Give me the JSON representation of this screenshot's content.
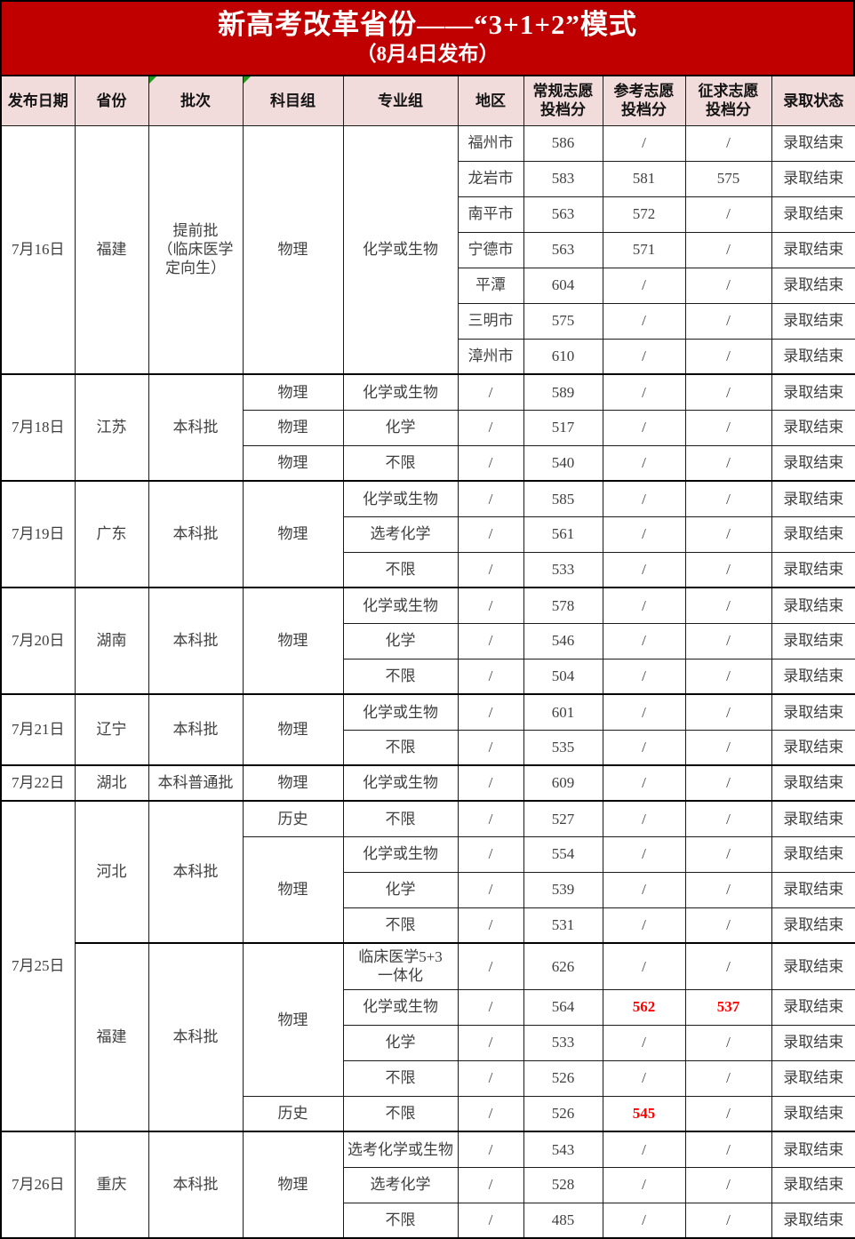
{
  "banner": {
    "title": "新高考改革省份——“3+1+2”模式",
    "subtitle": "（8月4日发布）"
  },
  "colors": {
    "banner_red": "#c00000",
    "header_pink": "#f2dcdb",
    "border_black": "#000000",
    "data_text": "#3f3f3f",
    "highlight_red": "#ff0000",
    "flag_green": "#1f9a1f"
  },
  "table": {
    "columns": [
      {
        "key": "date",
        "label": "发布日期"
      },
      {
        "key": "province",
        "label": "省份"
      },
      {
        "key": "batch",
        "label": "批次"
      },
      {
        "key": "subject",
        "label": "科目组"
      },
      {
        "key": "major",
        "label": "专业组"
      },
      {
        "key": "region",
        "label": "地区"
      },
      {
        "key": "regular",
        "label": "常规志愿\n投档分"
      },
      {
        "key": "reference",
        "label": "参考志愿\n投档分"
      },
      {
        "key": "solicit",
        "label": "征求志愿\n投档分"
      },
      {
        "key": "status",
        "label": "录取状态"
      }
    ],
    "green_marker_columns": [
      "batch",
      "subject"
    ],
    "rows": [
      {
        "cells": [
          {
            "t": "7月16日",
            "rs": 7
          },
          {
            "t": "福建",
            "rs": 7
          },
          {
            "t": "提前批\n（临床医学\n定向生）",
            "rs": 7
          },
          {
            "t": "物理",
            "rs": 7
          },
          {
            "t": "化学或生物",
            "rs": 7
          },
          {
            "t": "福州市"
          },
          {
            "t": "586"
          },
          {
            "t": "/"
          },
          {
            "t": "/"
          },
          {
            "t": "录取结束"
          }
        ]
      },
      {
        "cells": [
          {
            "t": "龙岩市"
          },
          {
            "t": "583"
          },
          {
            "t": "581"
          },
          {
            "t": "575"
          },
          {
            "t": "录取结束"
          }
        ]
      },
      {
        "cells": [
          {
            "t": "南平市"
          },
          {
            "t": "563"
          },
          {
            "t": "572"
          },
          {
            "t": "/"
          },
          {
            "t": "录取结束"
          }
        ]
      },
      {
        "cells": [
          {
            "t": "宁德市"
          },
          {
            "t": "563"
          },
          {
            "t": "571"
          },
          {
            "t": "/"
          },
          {
            "t": "录取结束"
          }
        ]
      },
      {
        "cells": [
          {
            "t": "平潭"
          },
          {
            "t": "604"
          },
          {
            "t": "/"
          },
          {
            "t": "/"
          },
          {
            "t": "录取结束"
          }
        ]
      },
      {
        "cells": [
          {
            "t": "三明市"
          },
          {
            "t": "575"
          },
          {
            "t": "/"
          },
          {
            "t": "/"
          },
          {
            "t": "录取结束"
          }
        ]
      },
      {
        "cells": [
          {
            "t": "漳州市"
          },
          {
            "t": "610"
          },
          {
            "t": "/"
          },
          {
            "t": "/"
          },
          {
            "t": "录取结束"
          }
        ]
      },
      {
        "thick": true,
        "cells": [
          {
            "t": "7月18日",
            "rs": 3
          },
          {
            "t": "江苏",
            "rs": 3
          },
          {
            "t": "本科批",
            "rs": 3
          },
          {
            "t": "物理"
          },
          {
            "t": "化学或生物"
          },
          {
            "t": "/"
          },
          {
            "t": "589"
          },
          {
            "t": "/"
          },
          {
            "t": "/"
          },
          {
            "t": "录取结束"
          }
        ]
      },
      {
        "cells": [
          {
            "t": "物理"
          },
          {
            "t": "化学"
          },
          {
            "t": "/"
          },
          {
            "t": "517"
          },
          {
            "t": "/"
          },
          {
            "t": "/"
          },
          {
            "t": "录取结束"
          }
        ]
      },
      {
        "cells": [
          {
            "t": "物理"
          },
          {
            "t": "不限"
          },
          {
            "t": "/"
          },
          {
            "t": "540"
          },
          {
            "t": "/"
          },
          {
            "t": "/"
          },
          {
            "t": "录取结束"
          }
        ]
      },
      {
        "thick": true,
        "cells": [
          {
            "t": "7月19日",
            "rs": 3
          },
          {
            "t": "广东",
            "rs": 3
          },
          {
            "t": "本科批",
            "rs": 3
          },
          {
            "t": "物理",
            "rs": 3
          },
          {
            "t": "化学或生物"
          },
          {
            "t": "/"
          },
          {
            "t": "585"
          },
          {
            "t": "/"
          },
          {
            "t": "/"
          },
          {
            "t": "录取结束"
          }
        ]
      },
      {
        "cells": [
          {
            "t": "选考化学"
          },
          {
            "t": "/"
          },
          {
            "t": "561"
          },
          {
            "t": "/"
          },
          {
            "t": "/"
          },
          {
            "t": "录取结束"
          }
        ]
      },
      {
        "cells": [
          {
            "t": "不限"
          },
          {
            "t": "/"
          },
          {
            "t": "533"
          },
          {
            "t": "/"
          },
          {
            "t": "/"
          },
          {
            "t": "录取结束"
          }
        ]
      },
      {
        "thick": true,
        "cells": [
          {
            "t": "7月20日",
            "rs": 3
          },
          {
            "t": "湖南",
            "rs": 3
          },
          {
            "t": "本科批",
            "rs": 3
          },
          {
            "t": "物理",
            "rs": 3
          },
          {
            "t": "化学或生物"
          },
          {
            "t": "/"
          },
          {
            "t": "578"
          },
          {
            "t": "/"
          },
          {
            "t": "/"
          },
          {
            "t": "录取结束"
          }
        ]
      },
      {
        "cells": [
          {
            "t": "化学"
          },
          {
            "t": "/"
          },
          {
            "t": "546"
          },
          {
            "t": "/"
          },
          {
            "t": "/"
          },
          {
            "t": "录取结束"
          }
        ]
      },
      {
        "cells": [
          {
            "t": "不限"
          },
          {
            "t": "/"
          },
          {
            "t": "504"
          },
          {
            "t": "/"
          },
          {
            "t": "/"
          },
          {
            "t": "录取结束"
          }
        ]
      },
      {
        "thick": true,
        "cells": [
          {
            "t": "7月21日",
            "rs": 2
          },
          {
            "t": "辽宁",
            "rs": 2
          },
          {
            "t": "本科批",
            "rs": 2
          },
          {
            "t": "物理",
            "rs": 2
          },
          {
            "t": "化学或生物"
          },
          {
            "t": "/"
          },
          {
            "t": "601"
          },
          {
            "t": "/"
          },
          {
            "t": "/"
          },
          {
            "t": "录取结束"
          }
        ]
      },
      {
        "cells": [
          {
            "t": "不限"
          },
          {
            "t": "/"
          },
          {
            "t": "535"
          },
          {
            "t": "/"
          },
          {
            "t": "/"
          },
          {
            "t": "录取结束"
          }
        ]
      },
      {
        "thick": true,
        "cells": [
          {
            "t": "7月22日"
          },
          {
            "t": "湖北"
          },
          {
            "t": "本科普通批"
          },
          {
            "t": "物理"
          },
          {
            "t": "化学或生物"
          },
          {
            "t": "/"
          },
          {
            "t": "609"
          },
          {
            "t": "/"
          },
          {
            "t": "/"
          },
          {
            "t": "录取结束"
          }
        ]
      },
      {
        "thick": true,
        "cells": [
          {
            "t": "7月25日",
            "rs": 9
          },
          {
            "t": "河北",
            "rs": 4
          },
          {
            "t": "本科批",
            "rs": 4
          },
          {
            "t": "历史"
          },
          {
            "t": "不限"
          },
          {
            "t": "/"
          },
          {
            "t": "527"
          },
          {
            "t": "/"
          },
          {
            "t": "/"
          },
          {
            "t": "录取结束"
          }
        ]
      },
      {
        "cells": [
          {
            "t": "物理",
            "rs": 3
          },
          {
            "t": "化学或生物"
          },
          {
            "t": "/"
          },
          {
            "t": "554"
          },
          {
            "t": "/"
          },
          {
            "t": "/"
          },
          {
            "t": "录取结束"
          }
        ]
      },
      {
        "cells": [
          {
            "t": "化学"
          },
          {
            "t": "/"
          },
          {
            "t": "539"
          },
          {
            "t": "/"
          },
          {
            "t": "/"
          },
          {
            "t": "录取结束"
          }
        ]
      },
      {
        "cells": [
          {
            "t": "不限"
          },
          {
            "t": "/"
          },
          {
            "t": "531"
          },
          {
            "t": "/"
          },
          {
            "t": "/"
          },
          {
            "t": "录取结束"
          }
        ]
      },
      {
        "thick": true,
        "tall": true,
        "cells": [
          {
            "t": "福建",
            "rs": 5
          },
          {
            "t": "本科批",
            "rs": 5
          },
          {
            "t": "物理",
            "rs": 4
          },
          {
            "t": "临床医学5+3\n一体化"
          },
          {
            "t": "/"
          },
          {
            "t": "626"
          },
          {
            "t": "/"
          },
          {
            "t": "/"
          },
          {
            "t": "录取结束"
          }
        ]
      },
      {
        "cells": [
          {
            "t": "化学或生物"
          },
          {
            "t": "/"
          },
          {
            "t": "564"
          },
          {
            "t": "562",
            "red": true
          },
          {
            "t": "537",
            "red": true
          },
          {
            "t": "录取结束"
          }
        ]
      },
      {
        "cells": [
          {
            "t": "化学"
          },
          {
            "t": "/"
          },
          {
            "t": "533"
          },
          {
            "t": "/"
          },
          {
            "t": "/"
          },
          {
            "t": "录取结束"
          }
        ]
      },
      {
        "cells": [
          {
            "t": "不限"
          },
          {
            "t": "/"
          },
          {
            "t": "526"
          },
          {
            "t": "/"
          },
          {
            "t": "/"
          },
          {
            "t": "录取结束"
          }
        ]
      },
      {
        "cells": [
          {
            "t": "历史"
          },
          {
            "t": "不限"
          },
          {
            "t": "/"
          },
          {
            "t": "526"
          },
          {
            "t": "545",
            "red": true
          },
          {
            "t": "/"
          },
          {
            "t": "录取结束"
          }
        ]
      },
      {
        "thick": true,
        "cells": [
          {
            "t": "7月26日",
            "rs": 3
          },
          {
            "t": "重庆",
            "rs": 3
          },
          {
            "t": "本科批",
            "rs": 3
          },
          {
            "t": "物理",
            "rs": 3
          },
          {
            "t": "选考化学或生物"
          },
          {
            "t": "/"
          },
          {
            "t": "543"
          },
          {
            "t": "/"
          },
          {
            "t": "/"
          },
          {
            "t": "录取结束"
          }
        ]
      },
      {
        "cells": [
          {
            "t": "选考化学"
          },
          {
            "t": "/"
          },
          {
            "t": "528"
          },
          {
            "t": "/"
          },
          {
            "t": "/"
          },
          {
            "t": "录取结束"
          }
        ]
      },
      {
        "cells": [
          {
            "t": "不限"
          },
          {
            "t": "/"
          },
          {
            "t": "485"
          },
          {
            "t": "/"
          },
          {
            "t": "/"
          },
          {
            "t": "录取结束"
          }
        ]
      }
    ]
  }
}
